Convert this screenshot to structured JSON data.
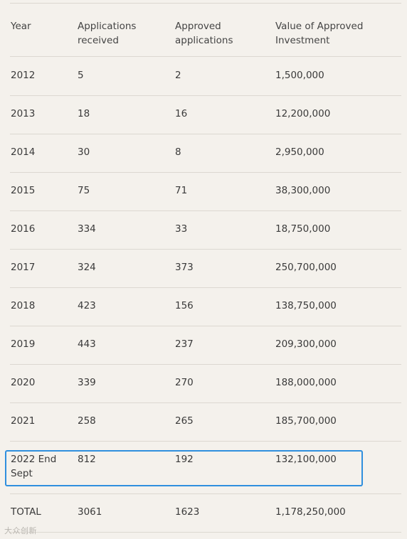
{
  "table": {
    "headers": [
      "Year",
      "Applications\nreceived",
      "Approved\napplications",
      "Value of Approved\nInvestment"
    ],
    "rows": [
      [
        "2012",
        "5",
        "2",
        "1,500,000"
      ],
      [
        "2013",
        "18",
        "16",
        "12,200,000"
      ],
      [
        "2014",
        "30",
        "8",
        "2,950,000"
      ],
      [
        "2015",
        "75",
        "71",
        "38,300,000"
      ],
      [
        "2016",
        "334",
        "33",
        "18,750,000"
      ],
      [
        "2017",
        "324",
        "373",
        "250,700,000"
      ],
      [
        "2018",
        "423",
        "156",
        "138,750,000"
      ],
      [
        "2019",
        "443",
        "237",
        "209,300,000"
      ],
      [
        "2020",
        "339",
        "270",
        "188,000,000"
      ],
      [
        "2021",
        "258",
        "265",
        "185,700,000"
      ],
      [
        "2022 End\nSept",
        "812",
        "192",
        "132,100,000"
      ],
      [
        "TOTAL",
        "3061",
        "1623",
        "1,178,250,000"
      ]
    ]
  },
  "highlight_row": "2022 End Sept",
  "colors": {
    "background": "#f4f1ec",
    "rule": "#dcd8d1",
    "highlight": "#2f8fde",
    "text": "#3a3a3a"
  },
  "watermark": "大众创新"
}
